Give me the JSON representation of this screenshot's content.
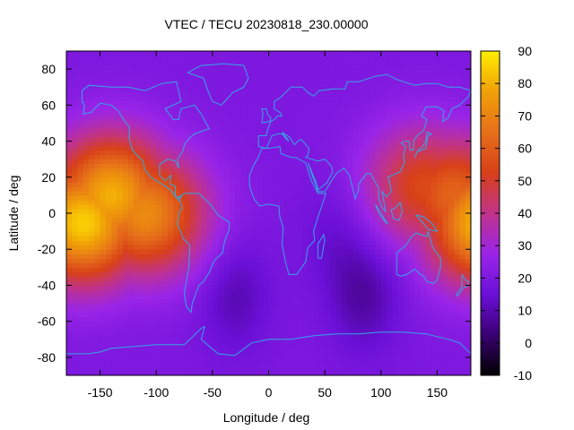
{
  "chart_data": {
    "type": "heatmap",
    "title": "VTEC / TECU 20230818_230.00000",
    "xlabel": "Longitude / deg",
    "ylabel": "Latitude / deg",
    "xlim": [
      -180,
      180
    ],
    "ylim": [
      -90,
      90
    ],
    "xticks": [
      -150,
      -100,
      -50,
      0,
      50,
      100,
      150
    ],
    "yticks": [
      -80,
      -60,
      -40,
      -20,
      0,
      20,
      40,
      60,
      80
    ],
    "colorbar": {
      "range": [
        -10,
        90
      ],
      "ticks": [
        -10,
        0,
        10,
        20,
        30,
        40,
        50,
        60,
        70,
        80,
        90
      ],
      "palette": [
        "#000000",
        "#3a0072",
        "#6b10d8",
        "#9a25e8",
        "#c0338a",
        "#d84018",
        "#e6701a",
        "#f0a008",
        "#ffee00"
      ]
    },
    "background_value": 20,
    "coastline_color": "#33a6e6",
    "features": [
      {
        "kind": "max",
        "lon": -165,
        "lat": -5,
        "value": 85
      },
      {
        "kind": "max",
        "lon": -140,
        "lat": 10,
        "value": 80
      },
      {
        "kind": "max",
        "lon": -110,
        "lat": 0,
        "value": 72
      },
      {
        "kind": "max",
        "lon": 165,
        "lat": 10,
        "value": 62
      },
      {
        "kind": "max",
        "lon": 140,
        "lat": 15,
        "value": 55
      },
      {
        "kind": "min",
        "lon": 85,
        "lat": -45,
        "value": 8
      },
      {
        "kind": "min",
        "lon": -30,
        "lat": -45,
        "value": 10
      },
      {
        "kind": "min",
        "lon": 60,
        "lat": -10,
        "value": 14
      }
    ]
  }
}
